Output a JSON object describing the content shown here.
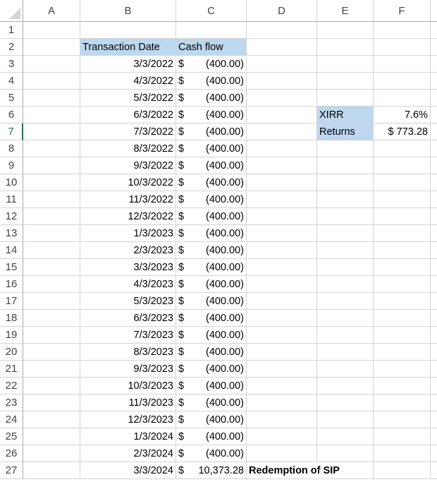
{
  "columns": [
    "A",
    "B",
    "C",
    "D",
    "E",
    "F"
  ],
  "selected_row": 7,
  "table": {
    "headers": {
      "date": "Transaction Date",
      "cash": "Cash flow"
    },
    "currency_symbol": "$",
    "rows": [
      {
        "row": 3,
        "date": "3/3/2022",
        "amount": "(400.00)"
      },
      {
        "row": 4,
        "date": "4/3/2022",
        "amount": "(400.00)"
      },
      {
        "row": 5,
        "date": "5/3/2022",
        "amount": "(400.00)"
      },
      {
        "row": 6,
        "date": "6/3/2022",
        "amount": "(400.00)"
      },
      {
        "row": 7,
        "date": "7/3/2022",
        "amount": "(400.00)"
      },
      {
        "row": 8,
        "date": "8/3/2022",
        "amount": "(400.00)"
      },
      {
        "row": 9,
        "date": "9/3/2022",
        "amount": "(400.00)"
      },
      {
        "row": 10,
        "date": "10/3/2022",
        "amount": "(400.00)"
      },
      {
        "row": 11,
        "date": "11/3/2022",
        "amount": "(400.00)"
      },
      {
        "row": 12,
        "date": "12/3/2022",
        "amount": "(400.00)"
      },
      {
        "row": 13,
        "date": "1/3/2023",
        "amount": "(400.00)"
      },
      {
        "row": 14,
        "date": "2/3/2023",
        "amount": "(400.00)"
      },
      {
        "row": 15,
        "date": "3/3/2023",
        "amount": "(400.00)"
      },
      {
        "row": 16,
        "date": "4/3/2023",
        "amount": "(400.00)"
      },
      {
        "row": 17,
        "date": "5/3/2023",
        "amount": "(400.00)"
      },
      {
        "row": 18,
        "date": "6/3/2023",
        "amount": "(400.00)"
      },
      {
        "row": 19,
        "date": "7/3/2023",
        "amount": "(400.00)"
      },
      {
        "row": 20,
        "date": "8/3/2023",
        "amount": "(400.00)"
      },
      {
        "row": 21,
        "date": "9/3/2023",
        "amount": "(400.00)"
      },
      {
        "row": 22,
        "date": "10/3/2023",
        "amount": "(400.00)"
      },
      {
        "row": 23,
        "date": "11/3/2023",
        "amount": "(400.00)"
      },
      {
        "row": 24,
        "date": "12/3/2023",
        "amount": "(400.00)"
      },
      {
        "row": 25,
        "date": "1/3/2024",
        "amount": "(400.00)"
      },
      {
        "row": 26,
        "date": "2/3/2024",
        "amount": "(400.00)"
      },
      {
        "row": 27,
        "date": "3/3/2024",
        "amount": "10,373.28",
        "note": "Redemption of SIP"
      }
    ]
  },
  "summary": {
    "xirr_label": "XIRR",
    "xirr_value": "7.6%",
    "returns_label": "Returns",
    "returns_value": "$ 773.28"
  },
  "colors": {
    "highlight": "#bdd7ee",
    "selection": "#217346"
  }
}
